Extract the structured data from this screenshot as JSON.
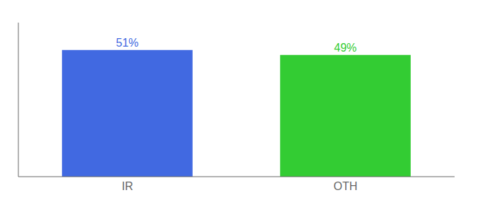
{
  "chart_data": {
    "type": "bar",
    "categories": [
      "IR",
      "OTH"
    ],
    "values": [
      51,
      49
    ],
    "value_labels": [
      "51%",
      "49%"
    ],
    "colors": [
      "#4169e1",
      "#33cc33"
    ],
    "ylim": [
      0,
      62
    ],
    "data_labels": true,
    "tick_labels": "x",
    "grid": false
  }
}
